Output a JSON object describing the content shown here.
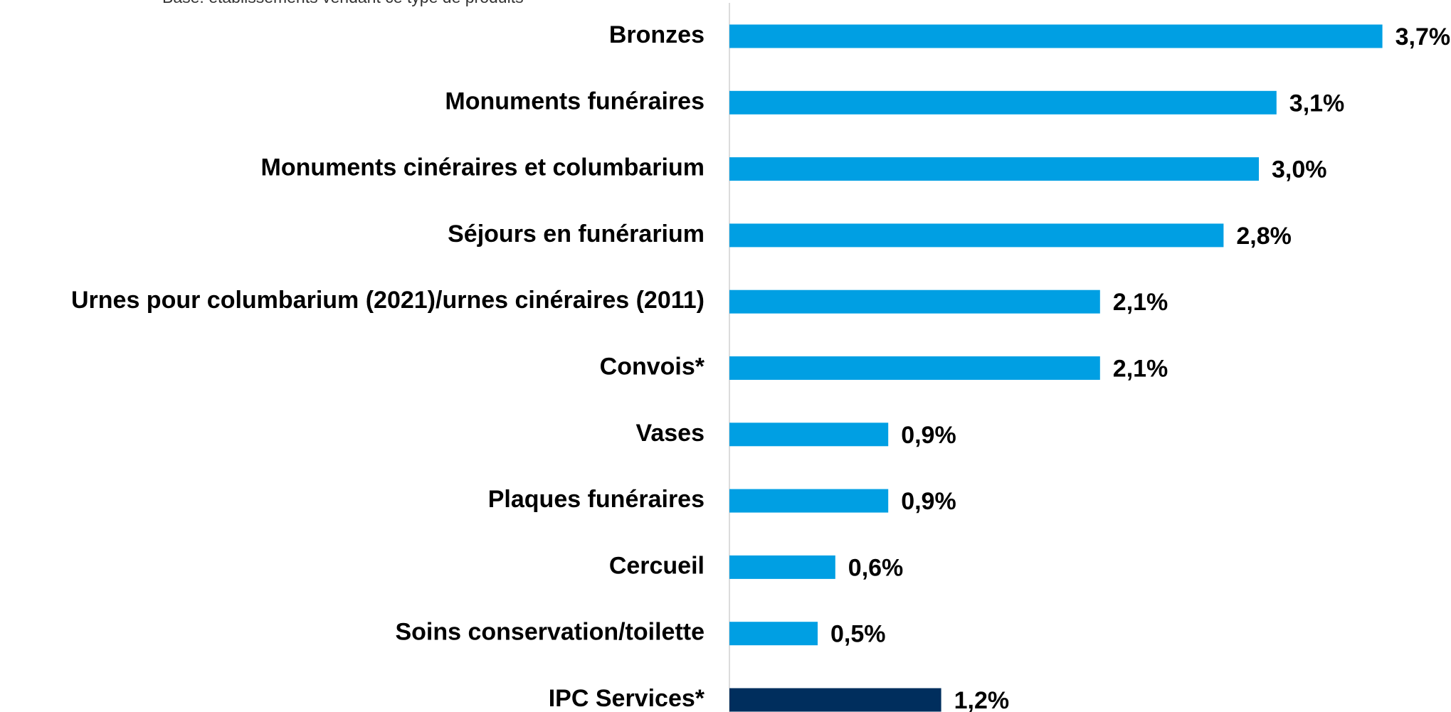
{
  "chart_data": {
    "type": "hbar",
    "subtitle": "Base: établissements vendant ce type de produits",
    "categories": [
      "Bronzes",
      "Monuments funéraires",
      "Monuments cinéraires et columbarium",
      "Séjours en funérarium",
      "Urnes pour columbarium (2021)/urnes cinéraires (2011)",
      "Convois*",
      "Vases",
      "Plaques funéraires",
      "Cercueil",
      "Soins conservation/toilette",
      "IPC Services*"
    ],
    "values": [
      3.7,
      3.1,
      3.0,
      2.8,
      2.1,
      2.1,
      0.9,
      0.9,
      0.6,
      0.5,
      1.2
    ],
    "value_labels": [
      "3,7%",
      "3,1%",
      "3,0%",
      "2,8%",
      "2,1%",
      "2,1%",
      "0,9%",
      "0,9%",
      "0,6%",
      "0,5%",
      "1,2%"
    ],
    "colors": [
      "#009fe3",
      "#009fe3",
      "#009fe3",
      "#009fe3",
      "#009fe3",
      "#009fe3",
      "#009fe3",
      "#009fe3",
      "#009fe3",
      "#009fe3",
      "#002e5d"
    ],
    "xlim": [
      0,
      4
    ]
  }
}
